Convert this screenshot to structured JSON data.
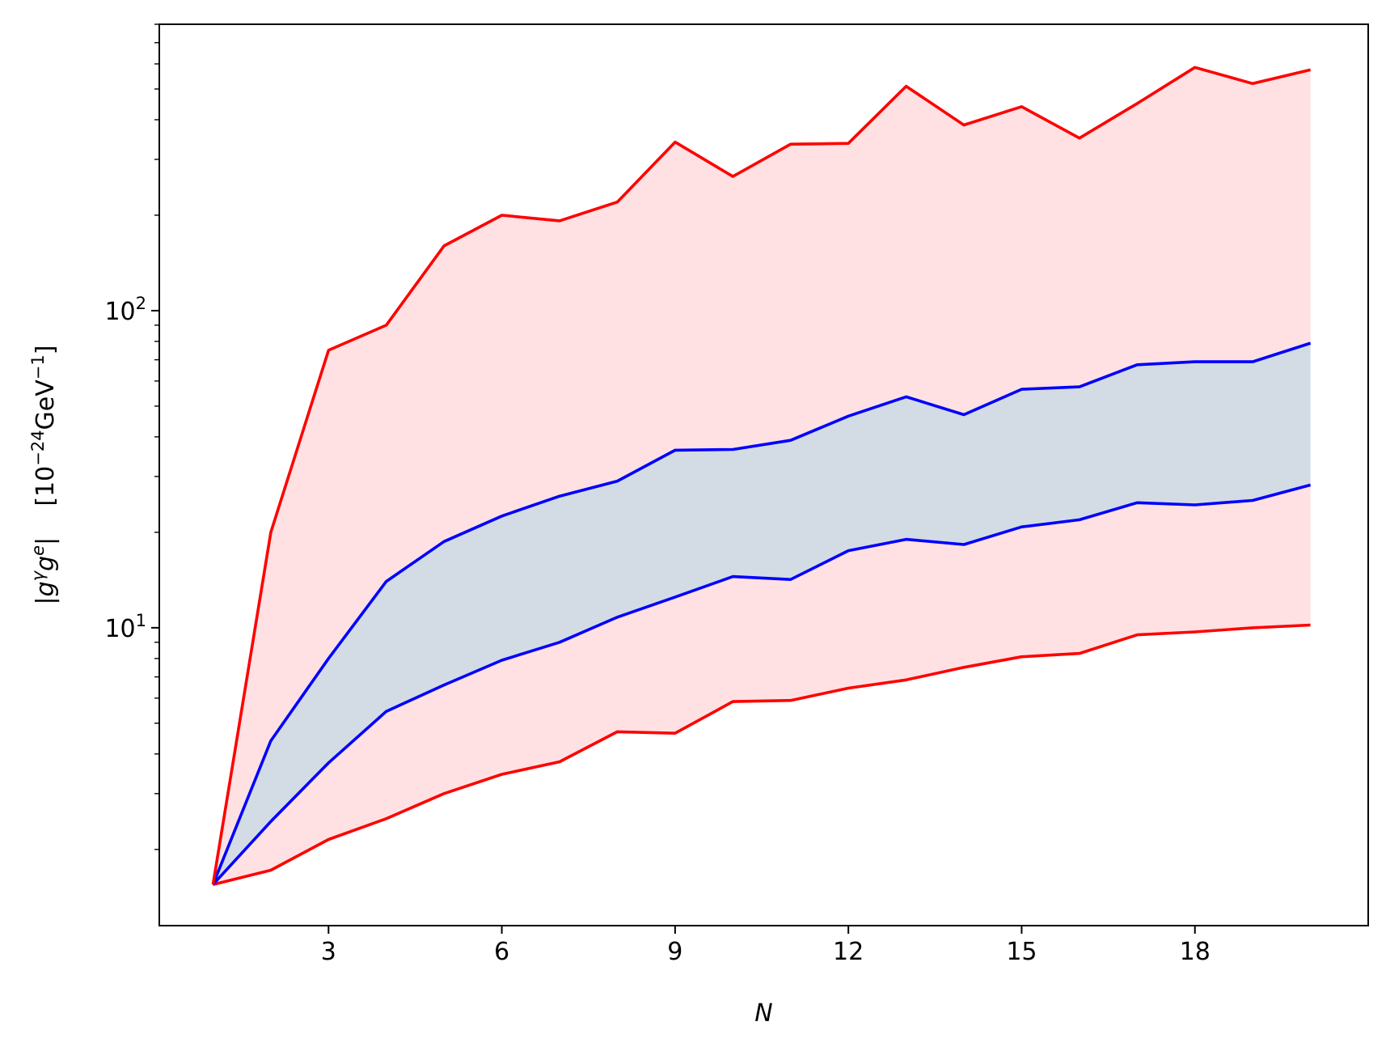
{
  "chart_data": {
    "type": "line",
    "y_scale": "log",
    "x": [
      1,
      2,
      3,
      4,
      5,
      6,
      7,
      8,
      9,
      10,
      11,
      12,
      13,
      14,
      15,
      16,
      17,
      18,
      19,
      20
    ],
    "xlim": [
      0.07,
      21
    ],
    "ylim": [
      1.15,
      800
    ],
    "x_ticks": [
      3,
      6,
      9,
      12,
      15,
      18
    ],
    "y_major_ticks": [
      10,
      100
    ],
    "xlabel": "N",
    "ylabel": "|g^γ g^e|   [10^−24 GeV^−1]",
    "ylabel_parts": {
      "bar": "|",
      "g1": "g",
      "gamma": "γ",
      "g2": "g",
      "e": "e",
      "bar2": "|",
      "bracket_open": "[10",
      "exponent": "−24",
      "unit": "GeV",
      "unit_exponent": "−1",
      "bracket_close": "]"
    },
    "grid": false,
    "bands": [
      {
        "color": "#ffe1e3",
        "lower_series": 0,
        "upper_series": 3
      },
      {
        "color": "#d3dce5",
        "lower_series": 1,
        "upper_series": 2
      }
    ],
    "series": [
      {
        "color": "#ff0000",
        "values": [
          1.55,
          1.72,
          2.15,
          2.5,
          3.0,
          3.45,
          3.78,
          4.7,
          4.65,
          5.85,
          5.9,
          6.45,
          6.85,
          7.5,
          8.1,
          8.3,
          9.5,
          9.7,
          10.0,
          10.2
        ]
      },
      {
        "color": "#0000ff",
        "values": [
          1.55,
          2.45,
          3.75,
          5.45,
          6.6,
          7.9,
          9.0,
          10.8,
          12.5,
          14.5,
          14.2,
          17.5,
          19.0,
          18.3,
          20.8,
          21.9,
          24.8,
          24.4,
          25.2,
          28.2
        ]
      },
      {
        "color": "#0000ff",
        "values": [
          1.55,
          4.4,
          8.0,
          14.0,
          18.7,
          22.5,
          26.0,
          29.0,
          36.3,
          36.5,
          39.0,
          46.5,
          53.5,
          47.0,
          56.5,
          57.5,
          67.5,
          69.0,
          69.0,
          79.0
        ]
      },
      {
        "color": "#ff0000",
        "values": [
          1.55,
          20.0,
          75.0,
          90.0,
          160.0,
          200.0,
          192.0,
          220.0,
          340.0,
          265.0,
          335.0,
          337.0,
          510.0,
          385.0,
          440.0,
          350.0,
          450.0,
          585.0,
          520.0,
          575.0
        ]
      }
    ]
  }
}
